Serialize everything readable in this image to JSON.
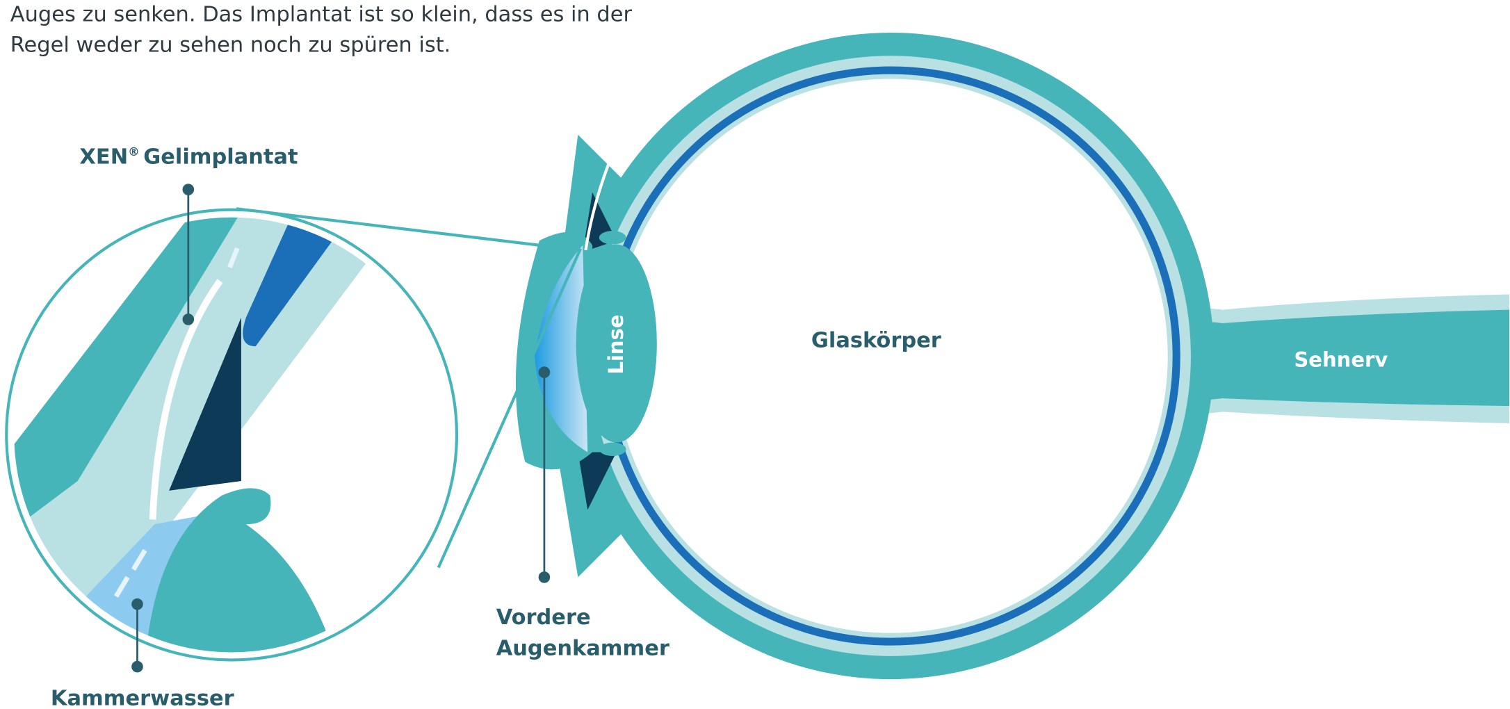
{
  "intro": {
    "lines": [
      "Auges zu senken. Das Implantat ist so klein, dass es in der",
      "Regel weder zu sehen noch zu spüren ist."
    ]
  },
  "labels": {
    "xen": {
      "brand": "XEN",
      "mark": "®",
      "name": "Gelimplantat"
    },
    "kammerwasser": "Kammerwasser",
    "vordere_augenkammer": [
      "Vordere",
      "Augenkammer"
    ],
    "linse": "Linse",
    "glaskoerper": "Glaskörper",
    "sehnerv": "Sehnerv"
  }
}
